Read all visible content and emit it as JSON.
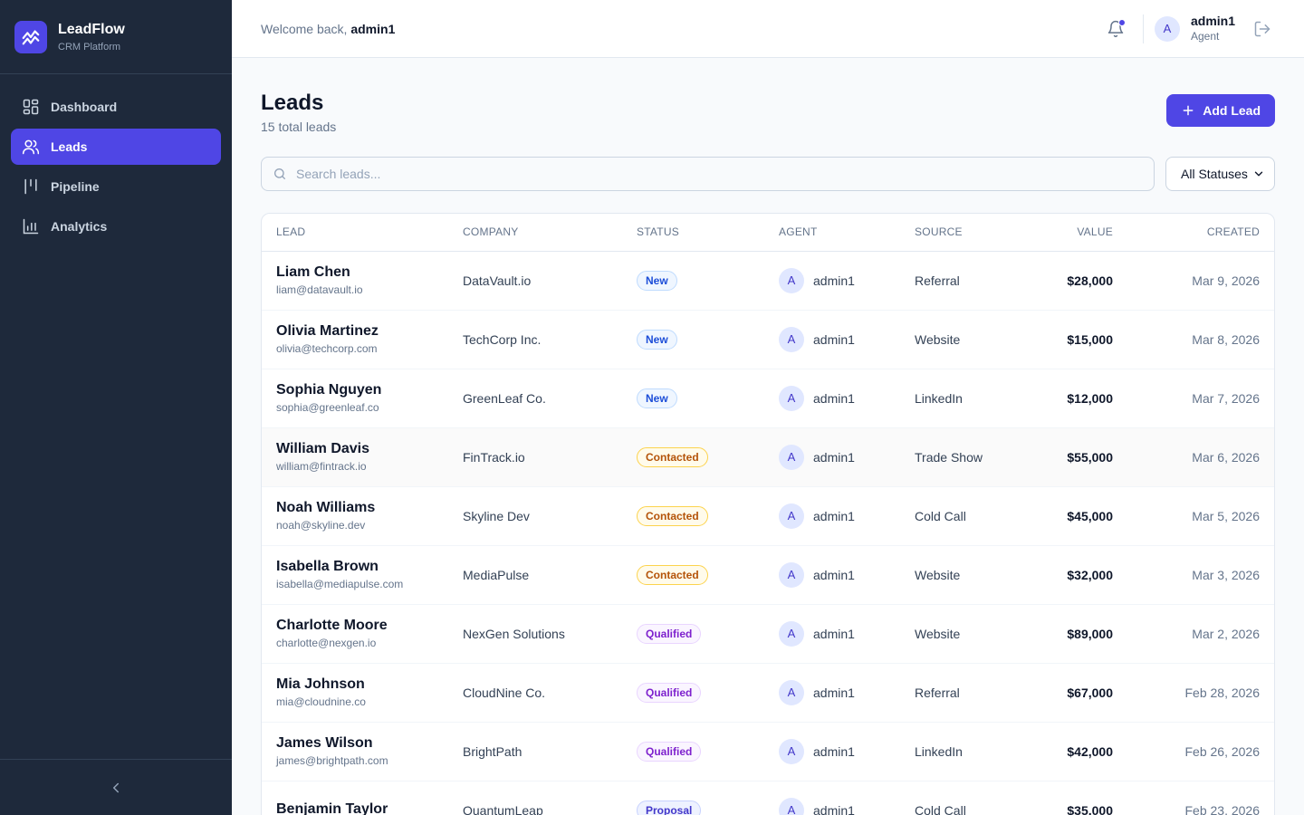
{
  "brand": {
    "name": "LeadFlow",
    "subtitle": "CRM Platform",
    "logo_icon": "trend-chart-icon"
  },
  "nav": [
    {
      "label": "Dashboard",
      "icon": "dashboard-icon",
      "active": false
    },
    {
      "label": "Leads",
      "icon": "users-icon",
      "active": true
    },
    {
      "label": "Pipeline",
      "icon": "pipeline-icon",
      "active": false
    },
    {
      "label": "Analytics",
      "icon": "bar-chart-icon",
      "active": false
    }
  ],
  "topbar": {
    "welcome_prefix": "Welcome back,",
    "welcome_user": "admin1",
    "user_initial": "A",
    "user_name": "admin1",
    "user_role": "Agent"
  },
  "page": {
    "title": "Leads",
    "subtitle": "15 total leads",
    "add_button": "Add Lead"
  },
  "search": {
    "placeholder": "Search leads...",
    "value": ""
  },
  "status_filter": {
    "selected": "All Statuses"
  },
  "table": {
    "headers": {
      "lead": "LEAD",
      "company": "COMPANY",
      "status": "STATUS",
      "agent": "AGENT",
      "source": "SOURCE",
      "value": "VALUE",
      "created": "CREATED"
    },
    "rows": [
      {
        "name": "Liam Chen",
        "email": "liam@datavault.io",
        "company": "DataVault.io",
        "status": "New",
        "agent_initial": "A",
        "agent": "admin1",
        "source": "Referral",
        "value": "$28,000",
        "created": "Mar 9, 2026"
      },
      {
        "name": "Olivia Martinez",
        "email": "olivia@techcorp.com",
        "company": "TechCorp Inc.",
        "status": "New",
        "agent_initial": "A",
        "agent": "admin1",
        "source": "Website",
        "value": "$15,000",
        "created": "Mar 8, 2026"
      },
      {
        "name": "Sophia Nguyen",
        "email": "sophia@greenleaf.co",
        "company": "GreenLeaf Co.",
        "status": "New",
        "agent_initial": "A",
        "agent": "admin1",
        "source": "LinkedIn",
        "value": "$12,000",
        "created": "Mar 7, 2026"
      },
      {
        "name": "William Davis",
        "email": "william@fintrack.io",
        "company": "FinTrack.io",
        "status": "Contacted",
        "agent_initial": "A",
        "agent": "admin1",
        "source": "Trade Show",
        "value": "$55,000",
        "created": "Mar 6, 2026"
      },
      {
        "name": "Noah Williams",
        "email": "noah@skyline.dev",
        "company": "Skyline Dev",
        "status": "Contacted",
        "agent_initial": "A",
        "agent": "admin1",
        "source": "Cold Call",
        "value": "$45,000",
        "created": "Mar 5, 2026"
      },
      {
        "name": "Isabella Brown",
        "email": "isabella@mediapulse.com",
        "company": "MediaPulse",
        "status": "Contacted",
        "agent_initial": "A",
        "agent": "admin1",
        "source": "Website",
        "value": "$32,000",
        "created": "Mar 3, 2026"
      },
      {
        "name": "Charlotte Moore",
        "email": "charlotte@nexgen.io",
        "company": "NexGen Solutions",
        "status": "Qualified",
        "agent_initial": "A",
        "agent": "admin1",
        "source": "Website",
        "value": "$89,000",
        "created": "Mar 2, 2026"
      },
      {
        "name": "Mia Johnson",
        "email": "mia@cloudnine.co",
        "company": "CloudNine Co.",
        "status": "Qualified",
        "agent_initial": "A",
        "agent": "admin1",
        "source": "Referral",
        "value": "$67,000",
        "created": "Feb 28, 2026"
      },
      {
        "name": "James Wilson",
        "email": "james@brightpath.com",
        "company": "BrightPath",
        "status": "Qualified",
        "agent_initial": "A",
        "agent": "admin1",
        "source": "LinkedIn",
        "value": "$42,000",
        "created": "Feb 26, 2026"
      },
      {
        "name": "Benjamin Taylor",
        "email": "",
        "company": "QuantumLeap",
        "status": "Proposal",
        "agent_initial": "A",
        "agent": "admin1",
        "source": "Cold Call",
        "value": "$35,000",
        "created": "Feb 23, 2026"
      }
    ]
  },
  "colors": {
    "sidebar_bg": "#1e293b",
    "accent": "#4f46e5",
    "page_bg": "#f8fafc"
  }
}
